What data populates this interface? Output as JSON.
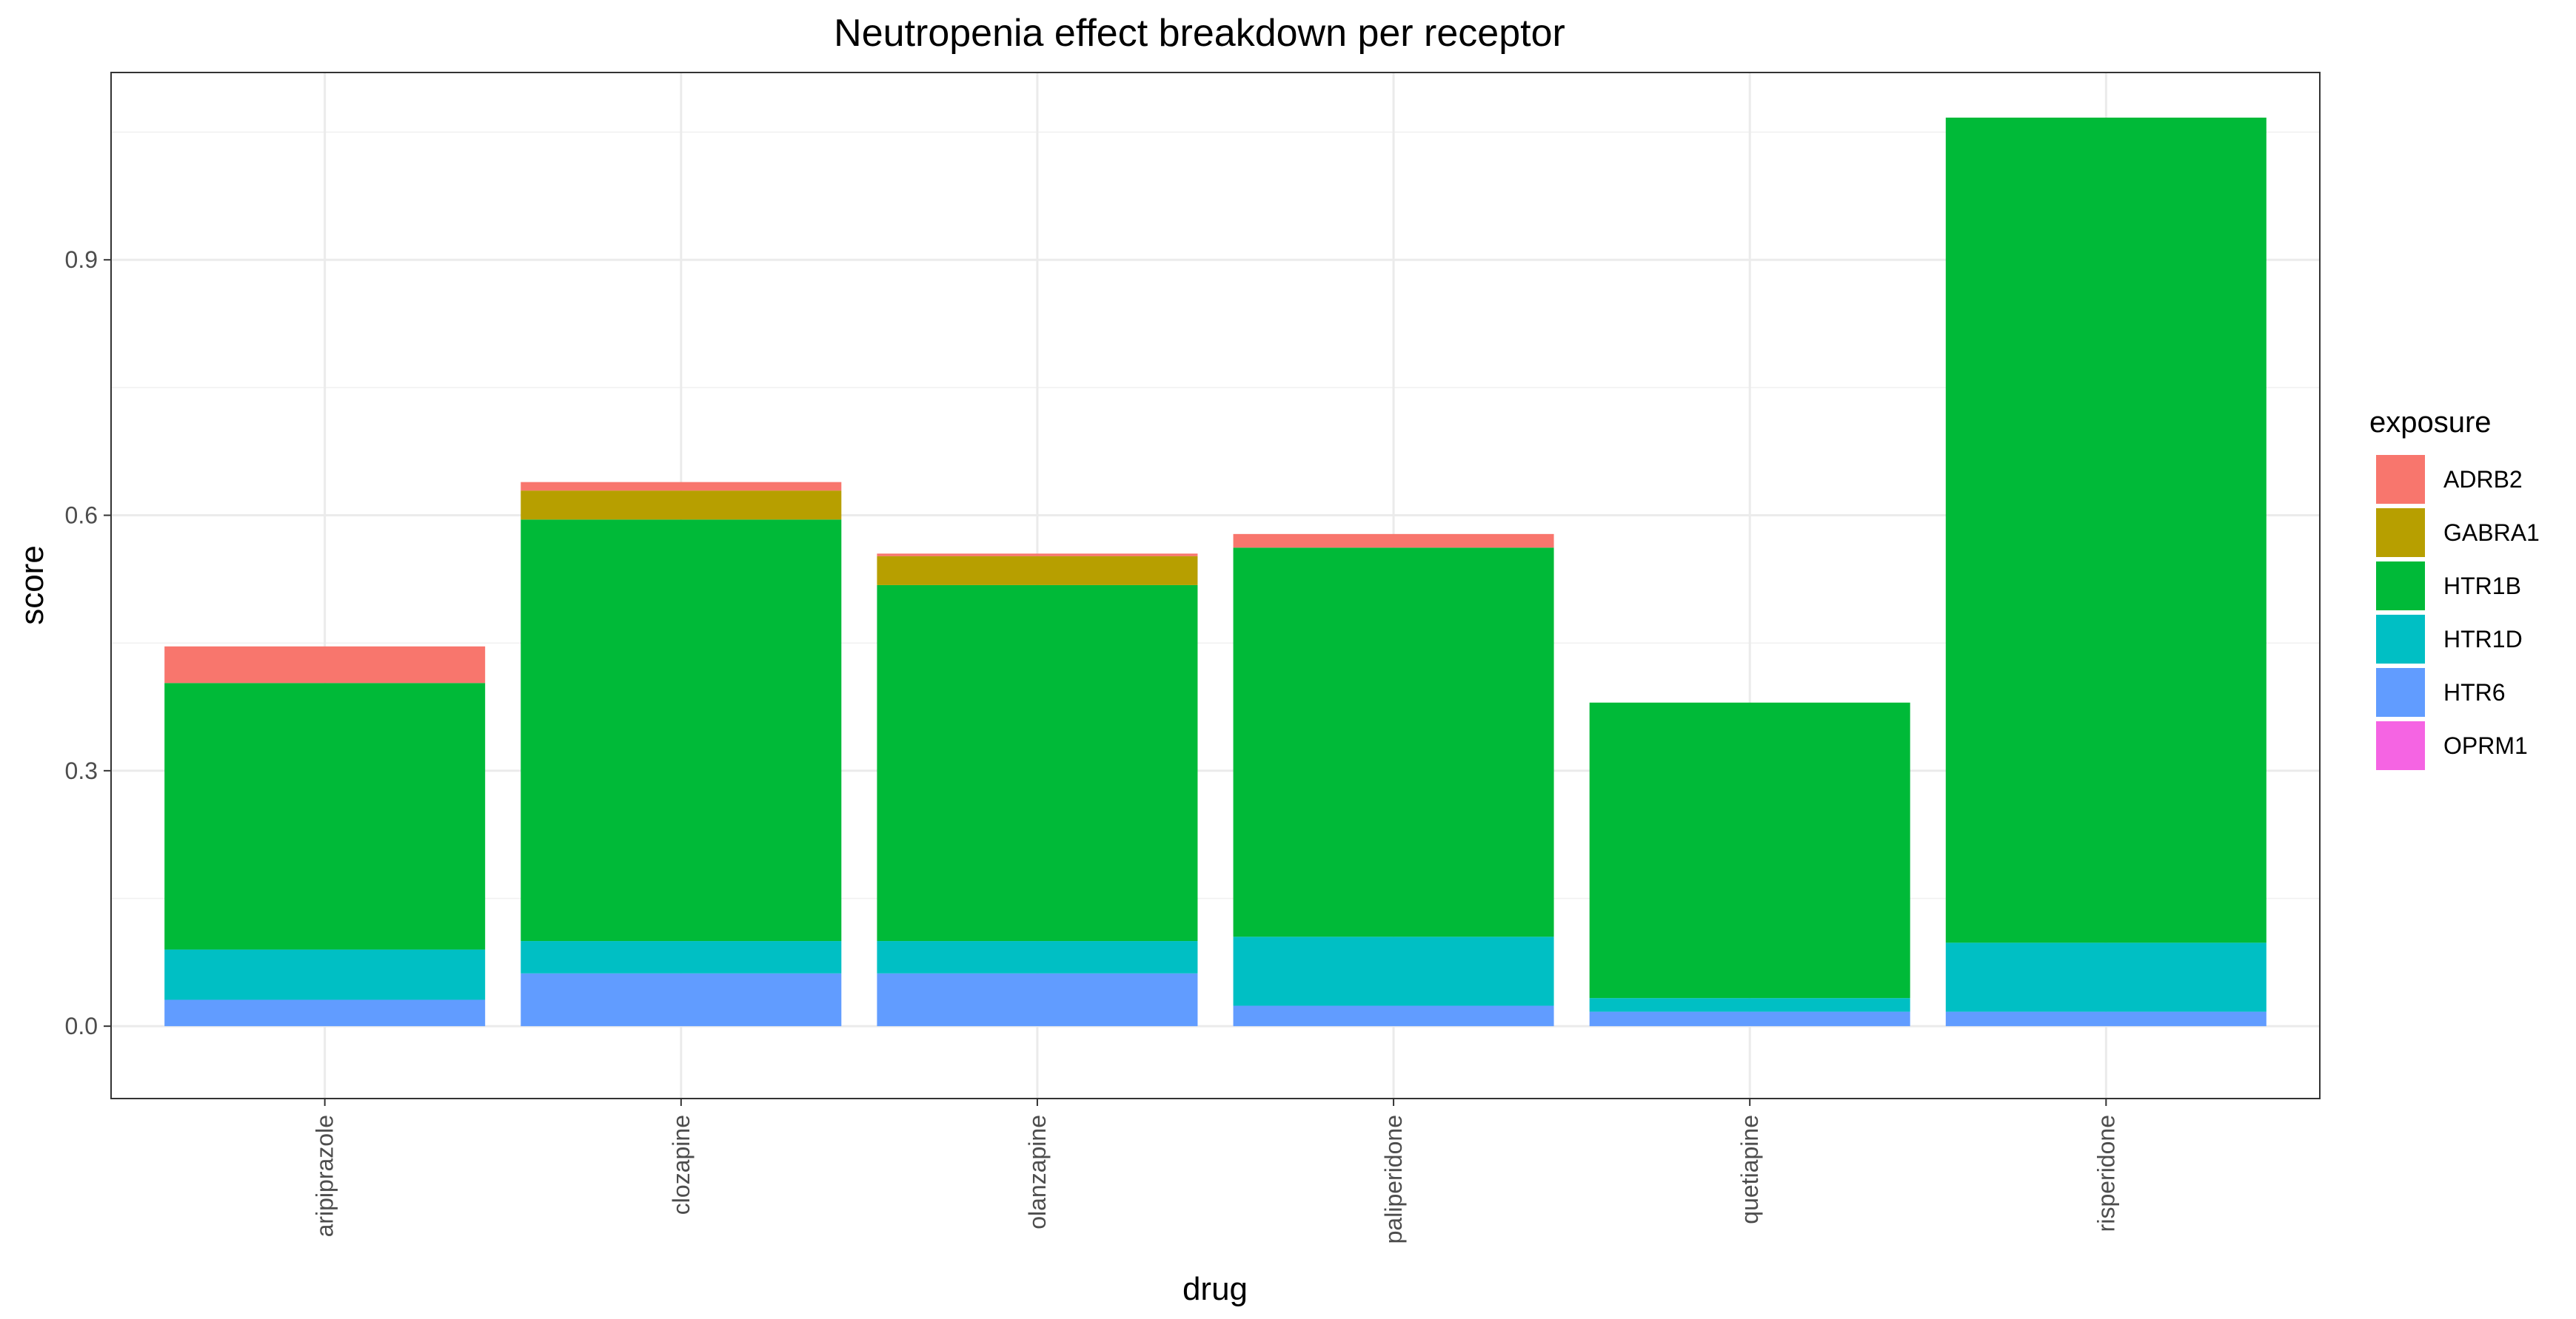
{
  "chart_data": {
    "type": "bar",
    "stacked": true,
    "title": "Neutropenia effect breakdown per receptor",
    "xlabel": "drug",
    "ylabel": "score",
    "ylim": [
      -0.085,
      1.12
    ],
    "yticks": [
      0.0,
      0.3,
      0.6,
      0.9
    ],
    "ytick_labels": [
      "0.0",
      "0.3",
      "0.6",
      "0.9"
    ],
    "grid": true,
    "legend_title": "exposure",
    "legend_position": "right",
    "categories": [
      "aripiprazole",
      "clozapine",
      "olanzapine",
      "paliperidone",
      "quetiapine",
      "risperidone"
    ],
    "series": [
      {
        "name": "HTR6",
        "color": "#619CFF",
        "values": [
          0.031,
          0.062,
          0.062,
          0.024,
          0.017,
          0.017
        ]
      },
      {
        "name": "HTR1D",
        "color": "#00BFC4",
        "values": [
          0.059,
          0.038,
          0.038,
          0.081,
          0.016,
          0.081
        ]
      },
      {
        "name": "HTR1B",
        "color": "#00BA38",
        "values": [
          0.313,
          0.495,
          0.418,
          0.457,
          0.347,
          0.969
        ]
      },
      {
        "name": "OPRM1",
        "color": "#F564E3",
        "values": [
          0.0,
          0.0,
          0.0,
          0.0,
          0.0,
          0.0
        ]
      },
      {
        "name": "GABRA1",
        "color": "#B79F00",
        "values": [
          0.0,
          0.034,
          0.034,
          0.0,
          0.0,
          0.0
        ]
      },
      {
        "name": "ADRB2",
        "color": "#F8766D",
        "values": [
          0.043,
          0.01,
          0.003,
          0.016,
          0.0,
          0.0
        ]
      }
    ],
    "legend_order": [
      "ADRB2",
      "GABRA1",
      "HTR1B",
      "HTR1D",
      "HTR6",
      "OPRM1"
    ]
  }
}
